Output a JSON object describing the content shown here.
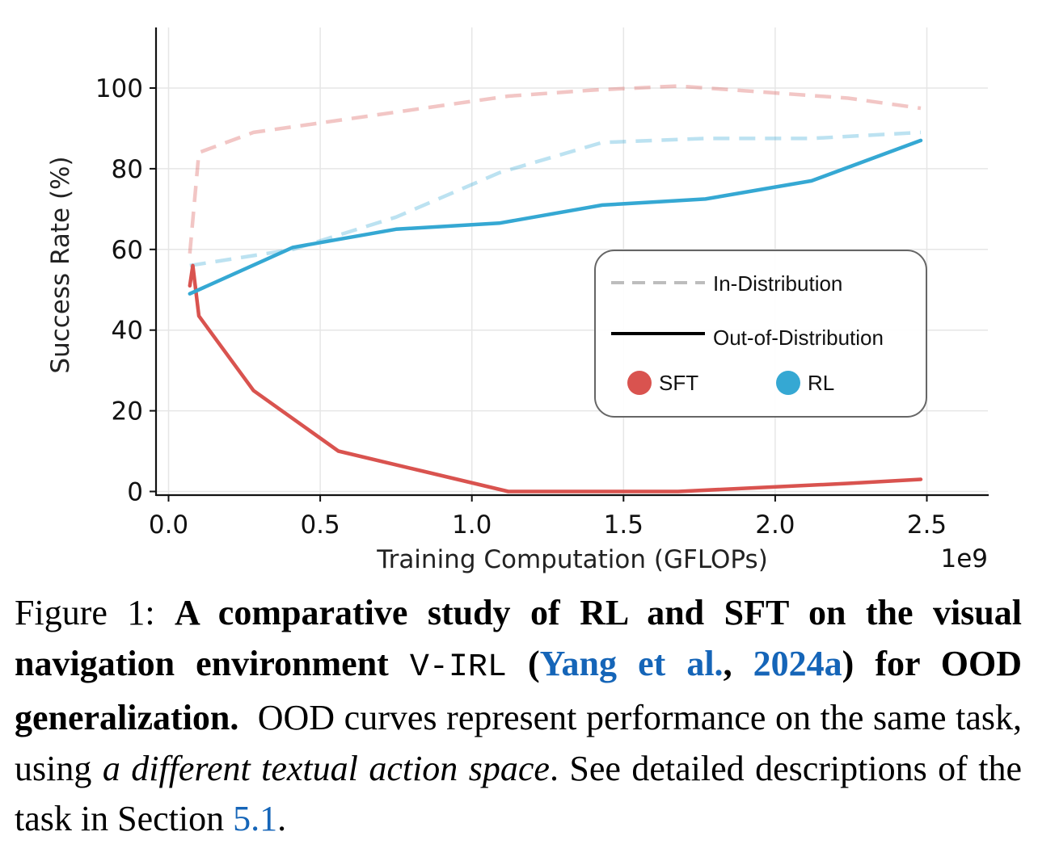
{
  "chart_data": {
    "type": "line",
    "xlabel": "Training Computation (GFLOPs)",
    "ylabel": "Success Rate (%)",
    "x_multiplier": "1e9",
    "xlim": [
      -0.1,
      2.7
    ],
    "ylim": [
      -1,
      115
    ],
    "x_ticks": [
      "0.0",
      "0.5",
      "1.0",
      "1.5",
      "2.0",
      "2.5"
    ],
    "x_tick_values": [
      0.0,
      0.5,
      1.0,
      1.5,
      2.0,
      2.5
    ],
    "y_ticks": [
      "0",
      "20",
      "40",
      "60",
      "80",
      "100"
    ],
    "y_tick_values": [
      0,
      20,
      40,
      60,
      80,
      100
    ],
    "grid": true,
    "legend": {
      "placement": "center-right",
      "style_entries": [
        {
          "label": "In-Distribution",
          "style": "dashed"
        },
        {
          "label": "Out-of-Distribution",
          "style": "solid"
        }
      ],
      "color_entries": [
        {
          "label": "SFT",
          "color": "#d9534f"
        },
        {
          "label": "RL",
          "color": "#35a8d3"
        }
      ]
    },
    "series": [
      {
        "name": "SFT",
        "split": "In-Distribution",
        "color": "#d9534f",
        "dashed": true,
        "x": [
          0.07,
          0.1,
          0.28,
          0.56,
          0.84,
          1.12,
          1.4,
          1.68,
          1.96,
          2.24,
          2.48
        ],
        "y": [
          59,
          84,
          89,
          92,
          95,
          98,
          99.5,
          100.5,
          99,
          97.5,
          95
        ]
      },
      {
        "name": "RL",
        "split": "In-Distribution",
        "color": "#35a8d3",
        "dashed": true,
        "x": [
          0.07,
          0.41,
          0.75,
          1.09,
          1.43,
          1.77,
          2.12,
          2.48
        ],
        "y": [
          56,
          60,
          68,
          79,
          86.5,
          87.5,
          87.5,
          89
        ]
      },
      {
        "name": "SFT",
        "split": "Out-of-Distribution",
        "color": "#d9534f",
        "dashed": false,
        "x": [
          0.07,
          0.08,
          0.1,
          0.28,
          0.56,
          0.84,
          1.12,
          1.4,
          1.68,
          1.96,
          2.24,
          2.48
        ],
        "y": [
          51,
          56,
          43.5,
          25,
          10,
          5,
          0,
          0,
          0,
          1,
          2,
          3
        ]
      },
      {
        "name": "RL",
        "split": "Out-of-Distribution",
        "color": "#35a8d3",
        "dashed": false,
        "x": [
          0.07,
          0.41,
          0.75,
          1.09,
          1.43,
          1.77,
          2.12,
          2.48
        ],
        "y": [
          49,
          60.5,
          65,
          66.5,
          71,
          72.5,
          77,
          87
        ]
      }
    ]
  },
  "caption": {
    "figure_label": "Figure 1:",
    "bold_part1": "A comparative study of RL and SFT on the visual navigation environment",
    "env_name": "V-IRL",
    "open_paren": "(",
    "cite_authors": "Yang et al.",
    "cite_sep": ", ",
    "cite_year": "2024a",
    "close_paren": ")",
    "bold_part2": "for OOD generalization.",
    "body1": "OOD curves represent performance on the same task, using",
    "italic1": "a different textual action space",
    "body2": ". See detailed descriptions of the task in Section",
    "section_ref": "5.1",
    "end": "."
  }
}
